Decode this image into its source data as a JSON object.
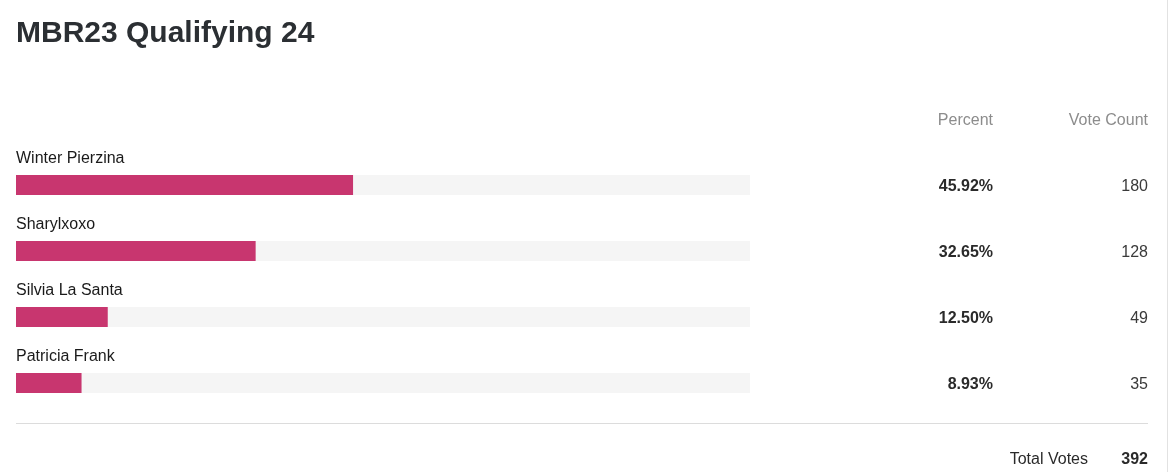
{
  "chart_data": {
    "type": "bar",
    "orientation": "horizontal",
    "title": "MBR23 Qualifying 24",
    "categories": [
      "Winter Pierzina",
      "Sharylxoxo",
      "Silvia La Santa",
      "Patricia Frank"
    ],
    "xlim": [
      0,
      100
    ],
    "tick_labels": "y",
    "color": "#c8366f",
    "values": [
      45.92,
      32.65,
      12.5,
      8.93
    ],
    "value_labels": [
      "45.92%",
      "32.65%",
      "12.50%",
      "8.93%"
    ],
    "annotations": [
      "Percent",
      "Vote Count",
      "180",
      "128",
      "49",
      "35",
      "Total Votes",
      "392"
    ]
  }
}
